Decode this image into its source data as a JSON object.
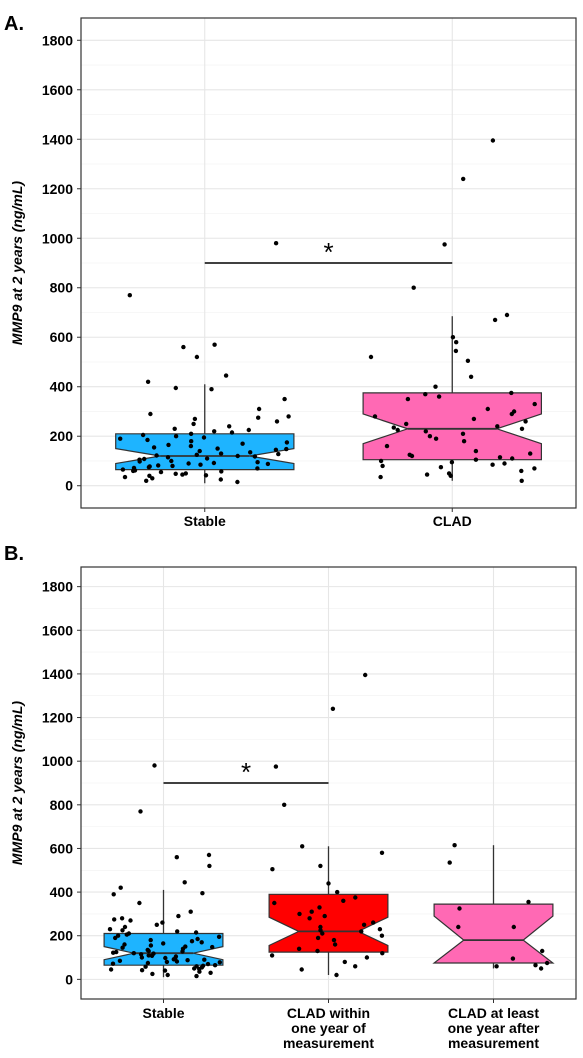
{
  "chart_data": [
    {
      "type": "box",
      "panel_label": "A.",
      "ylabel": "MMP9 at 2 years (ng/mL)",
      "xlabel": "",
      "ylim": [
        -90,
        1890
      ],
      "yticks": [
        0,
        200,
        400,
        600,
        800,
        1000,
        1200,
        1400,
        1600,
        1800
      ],
      "grid": true,
      "categories": [
        "Stable",
        "CLAD"
      ],
      "boxes": [
        {
          "name": "Stable",
          "color": "#1EB4FF",
          "q1": 65,
          "median": 120,
          "q3": 210,
          "whisker_low": 10,
          "whisker_high": 410,
          "notch_low": 90,
          "notch_high": 150,
          "points": [
            980,
            770,
            570,
            560,
            520,
            445,
            420,
            395,
            390,
            350,
            310,
            290,
            280,
            275,
            270,
            260,
            250,
            240,
            230,
            225,
            220,
            215,
            210,
            205,
            200,
            195,
            190,
            185,
            180,
            175,
            170,
            165,
            160,
            155,
            150,
            148,
            145,
            140,
            135,
            130,
            128,
            125,
            122,
            120,
            118,
            115,
            110,
            108,
            105,
            100,
            98,
            95,
            92,
            90,
            88,
            85,
            82,
            80,
            78,
            75,
            72,
            70,
            65,
            62,
            60,
            58,
            55,
            50,
            48,
            45,
            42,
            40,
            35,
            30,
            25,
            20,
            15
          ]
        },
        {
          "name": "CLAD",
          "color": "#FF69B4",
          "q1": 105,
          "median": 230,
          "q3": 375,
          "whisker_low": 20,
          "whisker_high": 685,
          "notch_low": 170,
          "notch_high": 290,
          "points": [
            1395,
            1240,
            975,
            800,
            690,
            670,
            600,
            580,
            545,
            520,
            505,
            440,
            400,
            375,
            370,
            360,
            350,
            330,
            310,
            300,
            290,
            280,
            270,
            260,
            250,
            240,
            235,
            230,
            225,
            220,
            210,
            200,
            190,
            180,
            160,
            140,
            130,
            125,
            120,
            115,
            110,
            105,
            100,
            95,
            90,
            85,
            80,
            75,
            70,
            60,
            50,
            45,
            40,
            35,
            20
          ]
        }
      ],
      "significance": [
        {
          "from": "Stable",
          "to": "CLAD",
          "y": 900,
          "label": "*"
        }
      ]
    },
    {
      "type": "box",
      "panel_label": "B.",
      "ylabel": "MMP9 at 2 years (ng/mL)",
      "xlabel": "",
      "ylim": [
        -90,
        1890
      ],
      "yticks": [
        0,
        200,
        400,
        600,
        800,
        1000,
        1200,
        1400,
        1600,
        1800
      ],
      "grid": true,
      "categories": [
        "Stable",
        "CLAD within one year of measurement",
        "CLAD at least one year after measurement"
      ],
      "category_lines": [
        [
          "Stable"
        ],
        [
          "CLAD within",
          "one year of",
          "measurement"
        ],
        [
          "CLAD at least",
          "one year after",
          "measurement"
        ]
      ],
      "boxes": [
        {
          "name": "Stable",
          "color": "#1EB4FF",
          "q1": 65,
          "median": 120,
          "q3": 210,
          "whisker_low": 10,
          "whisker_high": 410,
          "notch_low": 90,
          "notch_high": 150,
          "points": [
            980,
            770,
            570,
            560,
            520,
            445,
            420,
            395,
            390,
            350,
            310,
            290,
            280,
            275,
            270,
            260,
            250,
            240,
            230,
            225,
            220,
            215,
            210,
            205,
            200,
            195,
            190,
            185,
            180,
            175,
            170,
            165,
            160,
            155,
            150,
            148,
            145,
            140,
            135,
            130,
            128,
            125,
            122,
            120,
            118,
            115,
            110,
            108,
            105,
            100,
            98,
            95,
            92,
            90,
            88,
            85,
            82,
            80,
            78,
            75,
            72,
            70,
            65,
            62,
            60,
            58,
            55,
            50,
            48,
            45,
            42,
            40,
            35,
            30,
            25,
            20,
            15
          ]
        },
        {
          "name": "CLAD within one year of measurement",
          "color": "#FF0000",
          "q1": 125,
          "median": 220,
          "q3": 390,
          "whisker_low": 20,
          "whisker_high": 610,
          "notch_low": 155,
          "notch_high": 285,
          "points": [
            1395,
            1240,
            975,
            800,
            610,
            580,
            520,
            505,
            440,
            400,
            375,
            360,
            350,
            330,
            310,
            300,
            290,
            280,
            260,
            250,
            240,
            230,
            225,
            220,
            210,
            200,
            190,
            180,
            160,
            140,
            130,
            120,
            110,
            100,
            80,
            60,
            45,
            20
          ]
        },
        {
          "name": "CLAD at least one year after measurement",
          "color": "#FF69B4",
          "q1": 75,
          "median": 180,
          "q3": 345,
          "whisker_low": 50,
          "whisker_high": 615,
          "notch_low": 75,
          "notch_high": 290,
          "points": [
            615,
            535,
            355,
            325,
            240,
            240,
            130,
            95,
            75,
            65,
            60,
            50
          ]
        }
      ],
      "significance": [
        {
          "from": "Stable",
          "to": "CLAD within one year of measurement",
          "y": 900,
          "label": "*"
        }
      ]
    }
  ]
}
